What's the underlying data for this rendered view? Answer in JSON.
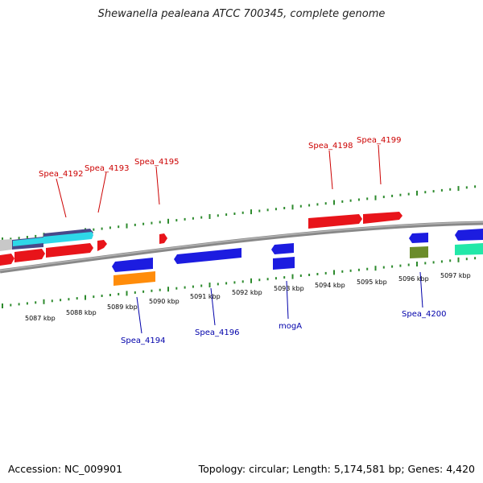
{
  "title": "Shewanella pealeana ATCC 700345, complete genome",
  "accession": "Accession: NC_009901",
  "stats": "Topology: circular; Length: 5,174,581 bp; Genes: 4,420",
  "colors": {
    "forward_label": "#cc0000",
    "reverse_label": "#0000aa",
    "tick": "#2e8b2e",
    "backbone": "#808080"
  },
  "scale_labels": [
    "5087 kbp",
    "5088 kbp",
    "5089 kbp",
    "5090 kbp",
    "5091 kbp",
    "5092 kbp",
    "5093 kbp",
    "5094 kbp",
    "5095 kbp",
    "5096 kbp",
    "5097 kbp"
  ],
  "gene_labels": {
    "spea_4192": "Spea_4192",
    "spea_4193": "Spea_4193",
    "spea_4195": "Spea_4195",
    "spea_4198": "Spea_4198",
    "spea_4199": "Spea_4199",
    "spea_4194": "Spea_4194",
    "spea_4196": "Spea_4196",
    "moga": "mogA",
    "spea_4200": "Spea_4200"
  }
}
